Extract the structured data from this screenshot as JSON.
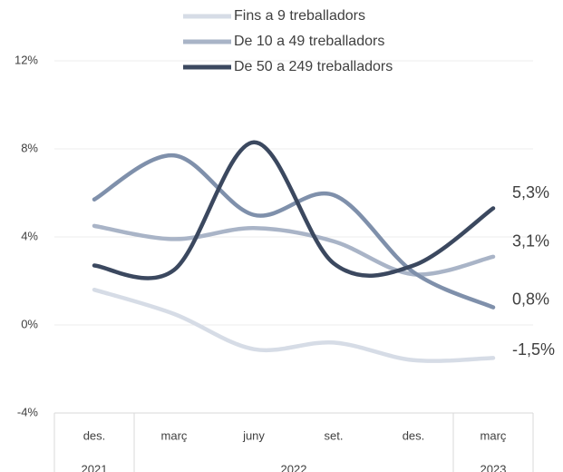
{
  "chart_data": {
    "type": "line",
    "categories": [
      "des.",
      "març",
      "juny",
      "set.",
      "des.",
      "març"
    ],
    "groups": [
      {
        "label": "2021",
        "span": 1
      },
      {
        "label": "2022",
        "span": 4
      },
      {
        "label": "2023",
        "span": 1
      }
    ],
    "series": [
      {
        "name": "Fins a 9 treballadors",
        "color": "#d6dce6",
        "values": [
          1.6,
          0.5,
          -1.1,
          -0.8,
          -1.6,
          -1.5
        ],
        "value_labels": [
          null,
          null,
          null,
          null,
          null,
          "-1,5%"
        ]
      },
      {
        "name": "De 10 a 49 treballadors",
        "color": "#a9b4c7",
        "values": [
          4.5,
          3.9,
          4.4,
          3.8,
          2.3,
          3.1
        ],
        "value_labels": [
          null,
          null,
          null,
          null,
          null,
          "3,1%"
        ]
      },
      {
        "name": "De 50 a 249 treballadors",
        "color": "#3b485f",
        "values": [
          2.7,
          2.5,
          8.3,
          2.8,
          2.7,
          5.3
        ],
        "value_labels": [
          null,
          null,
          null,
          null,
          null,
          "5,3%"
        ]
      },
      {
        "color": "#7f90ab",
        "values": [
          5.7,
          7.7,
          5.0,
          5.9,
          2.4,
          0.8
        ],
        "value_labels": [
          null,
          null,
          null,
          null,
          null,
          "0,8%"
        ]
      }
    ],
    "ylim": [
      -4,
      12
    ],
    "yticks": [
      {
        "value": -4,
        "label": "-4%"
      },
      {
        "value": 0,
        "label": "0%"
      },
      {
        "value": 4,
        "label": "4%"
      },
      {
        "value": 8,
        "label": "8%"
      },
      {
        "value": 12,
        "label": "12%"
      }
    ],
    "grid": true
  }
}
